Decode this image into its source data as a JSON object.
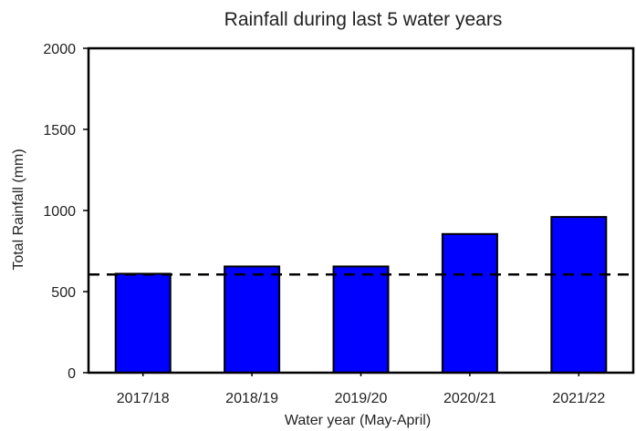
{
  "chart_data": {
    "type": "bar",
    "title": "Rainfall during last 5 water years",
    "xlabel": "Water year (May-April)",
    "ylabel": "Total Rainfall (mm)",
    "categories": [
      "2017/18",
      "2018/19",
      "2019/20",
      "2020/21",
      "2021/22"
    ],
    "values": [
      610,
      655,
      655,
      855,
      960
    ],
    "ylim": [
      0,
      2000
    ],
    "yticks": [
      0,
      500,
      1000,
      1500,
      2000
    ],
    "reference_line": {
      "value": 605,
      "style": "dashed"
    },
    "bar_color": "#0000ff",
    "grid": false,
    "legend": false
  }
}
